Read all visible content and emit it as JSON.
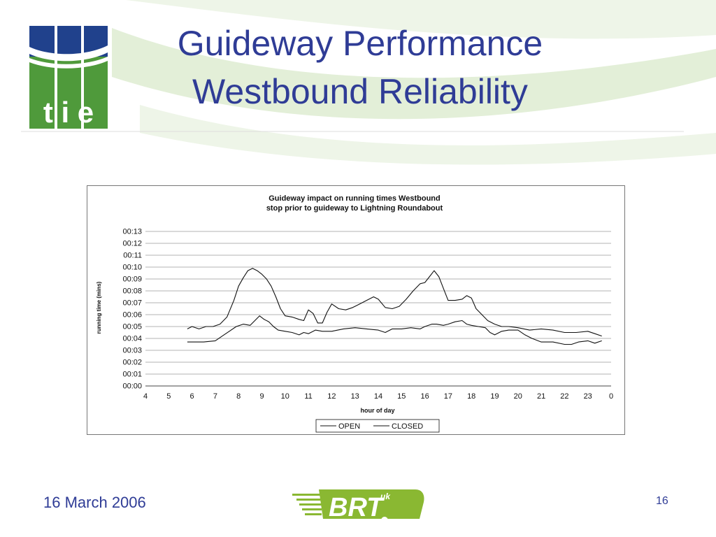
{
  "slide": {
    "title_line1": "Guideway Performance",
    "title_line2": "Westbound Reliability",
    "footer_date": "16 March 2006",
    "slide_number": "16",
    "tie_logo_text": "t i e",
    "brt_logo_text": "BRT",
    "brt_logo_superscript": "uk"
  },
  "colors": {
    "title": "#2f3c96",
    "tie_green": "#4f9a3b",
    "tie_blue": "#20418c",
    "brt_green": "#8ab832",
    "swoosh": "#e3efd8",
    "series_line": "#111111"
  },
  "chart_data": {
    "type": "line",
    "title": "Guideway impact on running times Westbound",
    "subtitle": "stop prior to guideway to Lightning Roundabout",
    "xlabel": "hour of day",
    "ylabel": "running time (mins)",
    "x_tick_labels": [
      "4",
      "5",
      "6",
      "7",
      "8",
      "9",
      "10",
      "11",
      "12",
      "13",
      "14",
      "15",
      "16",
      "17",
      "18",
      "19",
      "20",
      "21",
      "22",
      "23",
      "0"
    ],
    "y_tick_labels": [
      "00:00",
      "00:01",
      "00:02",
      "00:03",
      "00:04",
      "00:05",
      "00:06",
      "00:07",
      "00:08",
      "00:09",
      "00:10",
      "00:11",
      "00:12",
      "00:13"
    ],
    "xlim": [
      4,
      24
    ],
    "ylim": [
      0,
      13
    ],
    "grid": "horizontal",
    "legend_position": "bottom",
    "legend": [
      "OPEN",
      "CLOSED"
    ],
    "series": [
      {
        "name": "OPEN",
        "x": [
          5.8,
          6.0,
          6.5,
          7.0,
          7.3,
          7.6,
          7.9,
          8.2,
          8.5,
          8.7,
          8.9,
          9.1,
          9.3,
          9.5,
          9.7,
          10.0,
          10.3,
          10.6,
          10.8,
          11.0,
          11.3,
          11.6,
          12.0,
          12.5,
          13.0,
          13.5,
          14.0,
          14.3,
          14.6,
          15.0,
          15.4,
          15.8,
          16.0,
          16.3,
          16.5,
          16.8,
          17.0,
          17.3,
          17.6,
          17.8,
          18.0,
          18.3,
          18.6,
          18.8,
          19.0,
          19.3,
          19.6,
          20.0,
          20.3,
          20.6,
          21.0,
          21.5,
          22.0,
          22.3,
          22.6,
          23.0,
          23.3,
          23.6
        ],
        "y": [
          3.7,
          3.7,
          3.7,
          3.8,
          4.2,
          4.6,
          5.0,
          5.2,
          5.1,
          5.5,
          5.9,
          5.6,
          5.4,
          5.0,
          4.7,
          4.6,
          4.5,
          4.3,
          4.5,
          4.4,
          4.7,
          4.6,
          4.6,
          4.8,
          4.9,
          4.8,
          4.7,
          4.5,
          4.8,
          4.8,
          4.9,
          4.8,
          5.0,
          5.2,
          5.2,
          5.1,
          5.2,
          5.4,
          5.5,
          5.2,
          5.1,
          5.0,
          4.9,
          4.5,
          4.3,
          4.6,
          4.7,
          4.7,
          4.3,
          4.0,
          3.7,
          3.7,
          3.5,
          3.5,
          3.7,
          3.8,
          3.6,
          3.8
        ]
      },
      {
        "name": "CLOSED",
        "x": [
          5.8,
          6.0,
          6.3,
          6.6,
          6.9,
          7.2,
          7.5,
          7.8,
          8.0,
          8.2,
          8.4,
          8.6,
          8.8,
          9.0,
          9.2,
          9.4,
          9.6,
          9.8,
          10.0,
          10.3,
          10.6,
          10.8,
          11.0,
          11.2,
          11.4,
          11.6,
          11.8,
          12.0,
          12.3,
          12.6,
          12.9,
          13.2,
          13.5,
          13.8,
          14.0,
          14.3,
          14.6,
          14.9,
          15.2,
          15.5,
          15.8,
          16.0,
          16.2,
          16.4,
          16.6,
          16.8,
          17.0,
          17.3,
          17.6,
          17.8,
          18.0,
          18.2,
          18.4,
          18.7,
          19.0,
          19.3,
          19.6,
          20.0,
          20.5,
          21.0,
          21.5,
          22.0,
          22.5,
          23.0,
          23.3,
          23.6
        ],
        "y": [
          4.8,
          5.0,
          4.8,
          5.0,
          5.0,
          5.2,
          5.8,
          7.2,
          8.4,
          9.1,
          9.7,
          9.9,
          9.7,
          9.4,
          9.0,
          8.4,
          7.5,
          6.5,
          5.9,
          5.8,
          5.6,
          5.5,
          6.4,
          6.1,
          5.3,
          5.3,
          6.2,
          6.9,
          6.5,
          6.4,
          6.6,
          6.9,
          7.2,
          7.5,
          7.3,
          6.6,
          6.5,
          6.7,
          7.3,
          8.0,
          8.6,
          8.7,
          9.2,
          9.7,
          9.2,
          8.2,
          7.2,
          7.2,
          7.3,
          7.6,
          7.4,
          6.5,
          6.1,
          5.5,
          5.2,
          5.0,
          5.0,
          4.9,
          4.7,
          4.8,
          4.7,
          4.5,
          4.5,
          4.6,
          4.4,
          4.2
        ]
      }
    ]
  }
}
